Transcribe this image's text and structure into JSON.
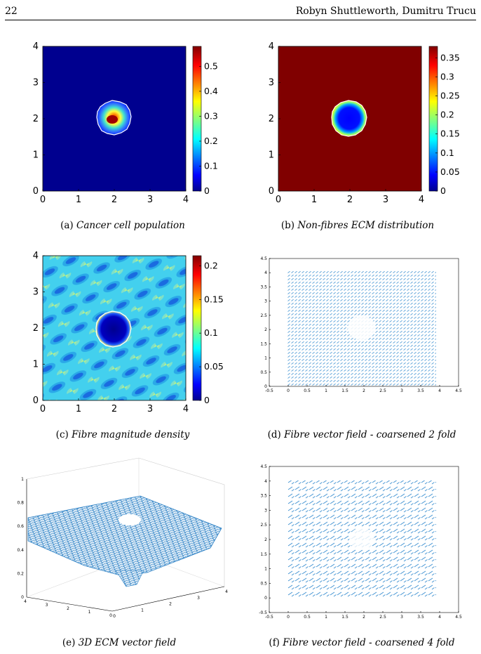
{
  "header": {
    "page_number": "22",
    "authors": "Robyn Shuttleworth, Dumitru Trucu"
  },
  "figures": [
    {
      "id": "a",
      "label": "(a)",
      "caption": "Cancer cell population",
      "chart_data": {
        "type": "heatmap",
        "xlim": [
          0,
          4
        ],
        "ylim": [
          0,
          4
        ],
        "x_ticks": [
          "0",
          "1",
          "2",
          "3",
          "4"
        ],
        "y_ticks": [
          "0",
          "1",
          "2",
          "3",
          "4"
        ],
        "colorbar": {
          "range": [
            0,
            0.58
          ],
          "ticks": [
            "0",
            "0.1",
            "0.2",
            "0.3",
            "0.4",
            "0.5"
          ]
        },
        "background": "#00008f",
        "colormap": "jet"
      }
    },
    {
      "id": "b",
      "label": "(b)",
      "caption": "Non-fibres ECM distribution",
      "chart_data": {
        "type": "heatmap",
        "xlim": [
          0,
          4
        ],
        "ylim": [
          0,
          4
        ],
        "x_ticks": [
          "0",
          "1",
          "2",
          "3",
          "4"
        ],
        "y_ticks": [
          "0",
          "1",
          "2",
          "3",
          "4"
        ],
        "colorbar": {
          "range": [
            0,
            0.38
          ],
          "ticks": [
            "0",
            "0.05",
            "0.1",
            "0.15",
            "0.2",
            "0.25",
            "0.3",
            "0.35"
          ]
        },
        "background": "#800000",
        "colormap": "jet"
      }
    },
    {
      "id": "c",
      "label": "(c)",
      "caption": "Fibre magnitude density",
      "chart_data": {
        "type": "heatmap",
        "xlim": [
          0,
          4
        ],
        "ylim": [
          0,
          4
        ],
        "x_ticks": [
          "0",
          "1",
          "2",
          "3",
          "4"
        ],
        "y_ticks": [
          "0",
          "1",
          "2",
          "3",
          "4"
        ],
        "colorbar": {
          "range": [
            0,
            0.215
          ],
          "ticks": [
            "0",
            "0.05",
            "0.1",
            "0.15",
            "0.2"
          ]
        },
        "colormap": "jet"
      }
    },
    {
      "id": "d",
      "label": "(d)",
      "caption": "Fibre vector field - coarsened 2 fold",
      "chart_data": {
        "type": "scatter",
        "subtype": "quiver",
        "xlim": [
          -0.5,
          4.5
        ],
        "ylim": [
          0,
          4.5
        ],
        "x_ticks": [
          "-0.5",
          "0",
          "0.5",
          "1",
          "1.5",
          "2",
          "2.5",
          "3",
          "3.5",
          "4",
          "4.5"
        ],
        "y_ticks": [
          "0",
          "0.5",
          "1",
          "1.5",
          "2",
          "2.5",
          "3",
          "3.5",
          "4",
          "4.5"
        ],
        "color": "#3b8fd0"
      }
    },
    {
      "id": "e",
      "label": "(e)",
      "caption": "3D ECM vector field",
      "chart_data": {
        "type": "scatter",
        "subtype": "quiver3d",
        "zlim": [
          0,
          1
        ],
        "z_ticks": [
          "0",
          "0.2",
          "0.4",
          "0.6",
          "0.8",
          "1"
        ],
        "x_ticks": [
          "0",
          "1",
          "2",
          "3",
          "4"
        ],
        "y_ticks": [
          "0",
          "1",
          "2",
          "3",
          "4"
        ],
        "color": "#2a7fc4"
      }
    },
    {
      "id": "f",
      "label": "(f)",
      "caption": "Fibre vector field - coarsened 4 fold",
      "chart_data": {
        "type": "scatter",
        "subtype": "quiver",
        "xlim": [
          -0.5,
          4.5
        ],
        "ylim": [
          -0.5,
          4.5
        ],
        "x_ticks": [
          "-0.5",
          "0",
          "0.5",
          "1",
          "1.5",
          "2",
          "2.5",
          "3",
          "3.5",
          "4",
          "4.5"
        ],
        "y_ticks": [
          "-0.5",
          "0",
          "0.5",
          "1",
          "1.5",
          "2",
          "2.5",
          "3",
          "3.5",
          "4",
          "4.5"
        ],
        "color": "#3b8fd0"
      }
    }
  ]
}
